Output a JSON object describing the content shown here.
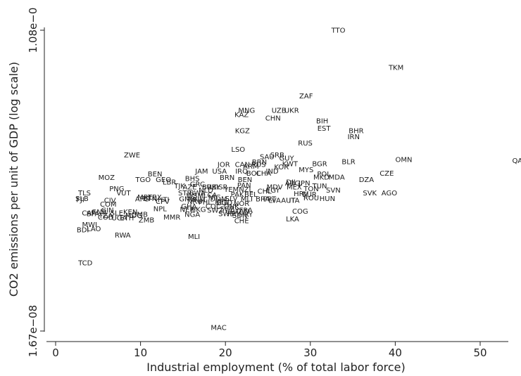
{
  "chart_data": {
    "type": "scatter",
    "title": "",
    "xlabel": "Industrial employment (% of total labor force)",
    "ylabel": "CO2 emissions per unit of GDP (log scale)",
    "xlim": [
      0,
      53.7
    ],
    "x_ticks": [
      0,
      10,
      20,
      30,
      40,
      50
    ],
    "x_tick_labels": [
      "0",
      "10",
      "20",
      "30",
      "40",
      "50"
    ],
    "y_scale": "log",
    "y_ticks": [
      1.67e-08,
      1.08e-06
    ],
    "y_tick_labels": [
      "1.67e−08",
      "1.08e−0"
    ],
    "grid": false,
    "legend": "none",
    "marker": "country code text",
    "points": [
      {
        "label": "TTO",
        "x": 33.3,
        "y": 1.08e-06
      },
      {
        "label": "TKM",
        "x": 40.1,
        "y": 6.45e-07
      },
      {
        "label": "ZAF",
        "x": 29.5,
        "y": 4.35e-07
      },
      {
        "label": "MNG",
        "x": 22.5,
        "y": 3.55e-07
      },
      {
        "label": "UZB",
        "x": 26.3,
        "y": 3.55e-07
      },
      {
        "label": "UKR",
        "x": 27.8,
        "y": 3.55e-07
      },
      {
        "label": "KAZ",
        "x": 21.9,
        "y": 3.36e-07
      },
      {
        "label": "CHN",
        "x": 25.6,
        "y": 3.2e-07
      },
      {
        "label": "BIH",
        "x": 31.4,
        "y": 3.08e-07
      },
      {
        "label": "EST",
        "x": 31.6,
        "y": 2.77e-07
      },
      {
        "label": "BHR",
        "x": 35.4,
        "y": 2.68e-07
      },
      {
        "label": "IRN",
        "x": 35.1,
        "y": 2.47e-07
      },
      {
        "label": "KGZ",
        "x": 22.0,
        "y": 2.68e-07
      },
      {
        "label": "RUS",
        "x": 29.4,
        "y": 2.26e-07
      },
      {
        "label": "LSO",
        "x": 21.5,
        "y": 2.07e-07
      },
      {
        "label": "ZWE",
        "x": 9.0,
        "y": 1.92e-07
      },
      {
        "label": "SRB",
        "x": 26.1,
        "y": 1.92e-07
      },
      {
        "label": "SAU",
        "x": 24.9,
        "y": 1.87e-07
      },
      {
        "label": "GUY",
        "x": 27.2,
        "y": 1.83e-07
      },
      {
        "label": "OMN",
        "x": 41.0,
        "y": 1.8e-07
      },
      {
        "label": "QAT",
        "x": 54.6,
        "y": 1.77e-07
      },
      {
        "label": "BLR",
        "x": 34.5,
        "y": 1.75e-07
      },
      {
        "label": "BGR",
        "x": 31.1,
        "y": 1.7e-07
      },
      {
        "label": "BRN",
        "x": 24.0,
        "y": 1.74e-07
      },
      {
        "label": "KWT",
        "x": 27.6,
        "y": 1.7e-07
      },
      {
        "label": "JOR",
        "x": 19.8,
        "y": 1.68e-07
      },
      {
        "label": "CAN",
        "x": 22.0,
        "y": 1.68e-07
      },
      {
        "label": "RUS",
        "x": 23.9,
        "y": 1.68e-07
      },
      {
        "label": "ARM",
        "x": 23.0,
        "y": 1.64e-07
      },
      {
        "label": "KOR",
        "x": 26.6,
        "y": 1.62e-07
      },
      {
        "label": "MYS",
        "x": 29.5,
        "y": 1.56e-07
      },
      {
        "label": "USA",
        "x": 19.3,
        "y": 1.53e-07
      },
      {
        "label": "IRQ",
        "x": 21.9,
        "y": 1.53e-07
      },
      {
        "label": "IND",
        "x": 25.5,
        "y": 1.53e-07
      },
      {
        "label": "JAM",
        "x": 17.2,
        "y": 1.53e-07
      },
      {
        "label": "BOL",
        "x": 23.3,
        "y": 1.49e-07
      },
      {
        "label": "CHA",
        "x": 24.5,
        "y": 1.49e-07
      },
      {
        "label": "POL",
        "x": 31.6,
        "y": 1.47e-07
      },
      {
        "label": "CZE",
        "x": 39.0,
        "y": 1.49e-07
      },
      {
        "label": "BEN",
        "x": 11.7,
        "y": 1.47e-07
      },
      {
        "label": "MKD",
        "x": 31.3,
        "y": 1.41e-07
      },
      {
        "label": "MDA",
        "x": 33.1,
        "y": 1.41e-07
      },
      {
        "label": "DZA",
        "x": 36.6,
        "y": 1.36e-07
      },
      {
        "label": "MOZ",
        "x": 6.0,
        "y": 1.4e-07
      },
      {
        "label": "BRN",
        "x": 20.2,
        "y": 1.4e-07
      },
      {
        "label": "BHS",
        "x": 16.1,
        "y": 1.38e-07
      },
      {
        "label": "TGO",
        "x": 10.3,
        "y": 1.36e-07
      },
      {
        "label": "GEO",
        "x": 12.7,
        "y": 1.36e-07
      },
      {
        "label": "LBR",
        "x": 13.4,
        "y": 1.32e-07
      },
      {
        "label": "BEN",
        "x": 22.3,
        "y": 1.36e-07
      },
      {
        "label": "DJI",
        "x": 27.7,
        "y": 1.32e-07
      },
      {
        "label": "ARG",
        "x": 27.9,
        "y": 1.3e-07
      },
      {
        "label": "JPN",
        "x": 29.3,
        "y": 1.3e-07
      },
      {
        "label": "GRC",
        "x": 16.7,
        "y": 1.28e-07
      },
      {
        "label": "TJK",
        "x": 14.6,
        "y": 1.25e-07
      },
      {
        "label": "AZE",
        "x": 15.8,
        "y": 1.23e-07
      },
      {
        "label": "BRB",
        "x": 18.1,
        "y": 1.23e-07
      },
      {
        "label": "ISR",
        "x": 19.6,
        "y": 1.23e-07
      },
      {
        "label": "UKY",
        "x": 18.6,
        "y": 1.23e-07
      },
      {
        "label": "PAN",
        "x": 22.2,
        "y": 1.26e-07
      },
      {
        "label": "MDV",
        "x": 25.8,
        "y": 1.23e-07
      },
      {
        "label": "MEX",
        "x": 28.1,
        "y": 1.23e-07
      },
      {
        "label": "TUN",
        "x": 31.1,
        "y": 1.25e-07
      },
      {
        "label": "TON",
        "x": 30.1,
        "y": 1.2e-07
      },
      {
        "label": "PNG",
        "x": 7.2,
        "y": 1.2e-07
      },
      {
        "label": "NLD",
        "x": 17.7,
        "y": 1.18e-07
      },
      {
        "label": "YEM",
        "x": 20.7,
        "y": 1.19e-07
      },
      {
        "label": "NZL",
        "x": 22.4,
        "y": 1.19e-07
      },
      {
        "label": "EGY",
        "x": 25.6,
        "y": 1.18e-07
      },
      {
        "label": "CHL",
        "x": 24.6,
        "y": 1.16e-07
      },
      {
        "label": "SVN",
        "x": 32.7,
        "y": 1.18e-07
      },
      {
        "label": "TLS",
        "x": 3.4,
        "y": 1.13e-07
      },
      {
        "label": "VUT",
        "x": 8.0,
        "y": 1.13e-07
      },
      {
        "label": "STP",
        "x": 15.2,
        "y": 1.13e-07
      },
      {
        "label": "BWA",
        "x": 16.7,
        "y": 1.13e-07
      },
      {
        "label": "SVK",
        "x": 37.0,
        "y": 1.13e-07
      },
      {
        "label": "AGO",
        "x": 39.3,
        "y": 1.13e-07
      },
      {
        "label": "PAK",
        "x": 21.4,
        "y": 1.11e-07
      },
      {
        "label": "BEL",
        "x": 23.0,
        "y": 1.11e-07
      },
      {
        "label": "HRV",
        "x": 28.9,
        "y": 1.12e-07
      },
      {
        "label": "EUR",
        "x": 29.9,
        "y": 1.11e-07
      },
      {
        "label": "WSM",
        "x": 16.4,
        "y": 1.09e-07
      },
      {
        "label": "LCA",
        "x": 18.2,
        "y": 1.1e-07
      },
      {
        "label": "MRT",
        "x": 10.5,
        "y": 1.07e-07
      },
      {
        "label": "LBX",
        "x": 11.7,
        "y": 1.07e-07
      },
      {
        "label": "NIC",
        "x": 18.7,
        "y": 1.07e-07
      },
      {
        "label": "ROU",
        "x": 30.1,
        "y": 1.06e-07
      },
      {
        "label": "HUN",
        "x": 32.0,
        "y": 1.05e-07
      },
      {
        "label": "SLB",
        "x": 3.1,
        "y": 1.05e-07
      },
      {
        "label": "BTN",
        "x": 11.1,
        "y": 1.05e-07
      },
      {
        "label": "SLV",
        "x": 20.7,
        "y": 1.05e-07
      },
      {
        "label": "BRA",
        "x": 24.4,
        "y": 1.04e-07
      },
      {
        "label": "MLI",
        "x": 22.5,
        "y": 1.04e-07
      },
      {
        "label": "PRT",
        "x": 25.2,
        "y": 1.04e-07
      },
      {
        "label": "FJI",
        "x": 2.9,
        "y": 1.03e-07
      },
      {
        "label": "AFG",
        "x": 10.2,
        "y": 1.04e-07
      },
      {
        "label": "HTI",
        "x": 12.7,
        "y": 1.03e-07
      },
      {
        "label": "GMB",
        "x": 15.5,
        "y": 1.04e-07
      },
      {
        "label": "VNM",
        "x": 16.7,
        "y": 1.03e-07
      },
      {
        "label": "DOM",
        "x": 19.2,
        "y": 1.04e-07
      },
      {
        "label": "LVA",
        "x": 25.8,
        "y": 1.02e-07
      },
      {
        "label": "AUT",
        "x": 27.4,
        "y": 1.02e-07
      },
      {
        "label": "ITA",
        "x": 28.1,
        "y": 1.02e-07
      },
      {
        "label": "CIV",
        "x": 6.4,
        "y": 1.02e-07
      },
      {
        "label": "CPV",
        "x": 12.6,
        "y": 1.01e-07
      },
      {
        "label": "NRU",
        "x": 16.4,
        "y": 1.01e-07
      },
      {
        "label": "PHL",
        "x": 17.6,
        "y": 1e-07
      },
      {
        "label": "KEN",
        "x": 19.6,
        "y": 1e-07
      },
      {
        "label": "COM",
        "x": 6.2,
        "y": 9.7e-08
      },
      {
        "label": "BGD",
        "x": 19.9,
        "y": 9.9e-08
      },
      {
        "label": "NOR",
        "x": 21.9,
        "y": 9.8e-08
      },
      {
        "label": "GHA",
        "x": 15.7,
        "y": 9.4e-08
      },
      {
        "label": "COL",
        "x": 18.5,
        "y": 9.4e-08
      },
      {
        "label": "DNK",
        "x": 20.7,
        "y": 9.4e-08
      },
      {
        "label": "NPL",
        "x": 12.3,
        "y": 9.1e-08
      },
      {
        "label": "NER",
        "x": 15.5,
        "y": 9e-08
      },
      {
        "label": "HKG",
        "x": 16.8,
        "y": 9e-08
      },
      {
        "label": "SGP",
        "x": 20.2,
        "y": 9.1e-08
      },
      {
        "label": "FRA",
        "x": 22.4,
        "y": 8.9e-08
      },
      {
        "label": "COG",
        "x": 28.8,
        "y": 8.8e-08
      },
      {
        "label": "GIN",
        "x": 6.1,
        "y": 8.9e-08
      },
      {
        "label": "SWZ",
        "x": 18.8,
        "y": 8.9e-08
      },
      {
        "label": "CRI",
        "x": 20.7,
        "y": 8.8e-08
      },
      {
        "label": "TAN",
        "x": 22.0,
        "y": 8.8e-08
      },
      {
        "label": "GNB",
        "x": 5.1,
        "y": 8.7e-08
      },
      {
        "label": "KEN",
        "x": 8.8,
        "y": 8.7e-08
      },
      {
        "label": "CAF",
        "x": 3.9,
        "y": 8.6e-08
      },
      {
        "label": "SLE",
        "x": 7.2,
        "y": 8.6e-08
      },
      {
        "label": "BFA",
        "x": 4.4,
        "y": 8.5e-08
      },
      {
        "label": "TZA",
        "x": 5.9,
        "y": 8.3e-08
      },
      {
        "label": "MDG",
        "x": 9.2,
        "y": 8.3e-08
      },
      {
        "label": "GMB",
        "x": 9.9,
        "y": 8.4e-08
      },
      {
        "label": "NGA",
        "x": 16.1,
        "y": 8.4e-08
      },
      {
        "label": "SWE",
        "x": 20.1,
        "y": 8.5e-08
      },
      {
        "label": "PRY",
        "x": 21.0,
        "y": 8.5e-08
      },
      {
        "label": "HRY",
        "x": 22.4,
        "y": 8.4e-08
      },
      {
        "label": "SDN",
        "x": 21.7,
        "y": 8.3e-08
      },
      {
        "label": "COD",
        "x": 5.9,
        "y": 8.1e-08
      },
      {
        "label": "UGA",
        "x": 7.5,
        "y": 8e-08
      },
      {
        "label": "ETH",
        "x": 8.4,
        "y": 8e-08
      },
      {
        "label": "MMR",
        "x": 13.7,
        "y": 8.1e-08
      },
      {
        "label": "LKA",
        "x": 27.9,
        "y": 7.9e-08
      },
      {
        "label": "ZMB",
        "x": 10.7,
        "y": 7.8e-08
      },
      {
        "label": "CHE",
        "x": 21.9,
        "y": 7.7e-08
      },
      {
        "label": "MWI",
        "x": 4.0,
        "y": 7.3e-08
      },
      {
        "label": "LAO",
        "x": 4.5,
        "y": 6.9e-08
      },
      {
        "label": "BDI",
        "x": 3.2,
        "y": 6.8e-08
      },
      {
        "label": "RWA",
        "x": 7.9,
        "y": 6.3e-08
      },
      {
        "label": "MLI",
        "x": 16.3,
        "y": 6.2e-08
      },
      {
        "label": "TCD",
        "x": 3.5,
        "y": 4.3e-08
      },
      {
        "label": "MAC",
        "x": 19.2,
        "y": 1.75e-08
      }
    ]
  }
}
